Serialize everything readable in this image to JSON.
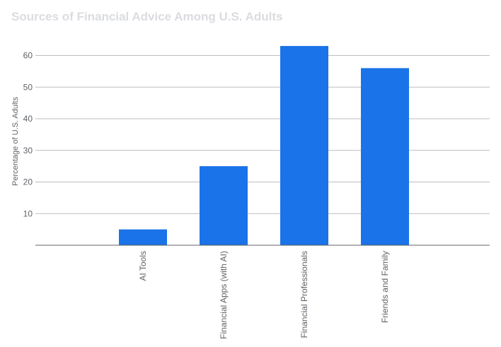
{
  "chart_data": {
    "type": "bar",
    "title": "Sources of Financial Advice Among U.S. Adults",
    "xlabel": "",
    "ylabel": "Percentage of U.S. Adults",
    "categories": [
      "AI Tools",
      "Financial Apps (with AI)",
      "Financial Professionals",
      "Friends and Family"
    ],
    "values": [
      5,
      25,
      63,
      56
    ],
    "ylim": [
      0,
      65
    ],
    "yticks": [
      10,
      20,
      30,
      40,
      50,
      60
    ],
    "grid": true,
    "legend": "none",
    "colors": {
      "bar": "#1a73e8",
      "grid": "#bdbdbd",
      "axis": "#5f6368",
      "title": "#dadce0"
    }
  }
}
